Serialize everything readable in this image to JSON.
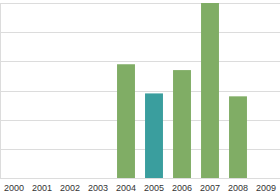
{
  "chart_data": {
    "type": "bar",
    "categories": [
      "2000",
      "2001",
      "2002",
      "2003",
      "2004",
      "2005",
      "2006",
      "2007",
      "2008",
      "2009"
    ],
    "values": [
      0,
      0,
      0,
      0,
      3.9,
      2.9,
      3.7,
      6,
      2.8,
      0
    ],
    "colors": [
      "#80ad65",
      "#80ad65",
      "#80ad65",
      "#80ad65",
      "#80ad65",
      "#3a9e9e",
      "#80ad65",
      "#80ad65",
      "#80ad65",
      "#80ad65"
    ],
    "ylim": [
      0,
      6
    ],
    "yticks": [
      0,
      1,
      2,
      3,
      4,
      5,
      6
    ],
    "grid": true,
    "tick_labels": "x"
  }
}
